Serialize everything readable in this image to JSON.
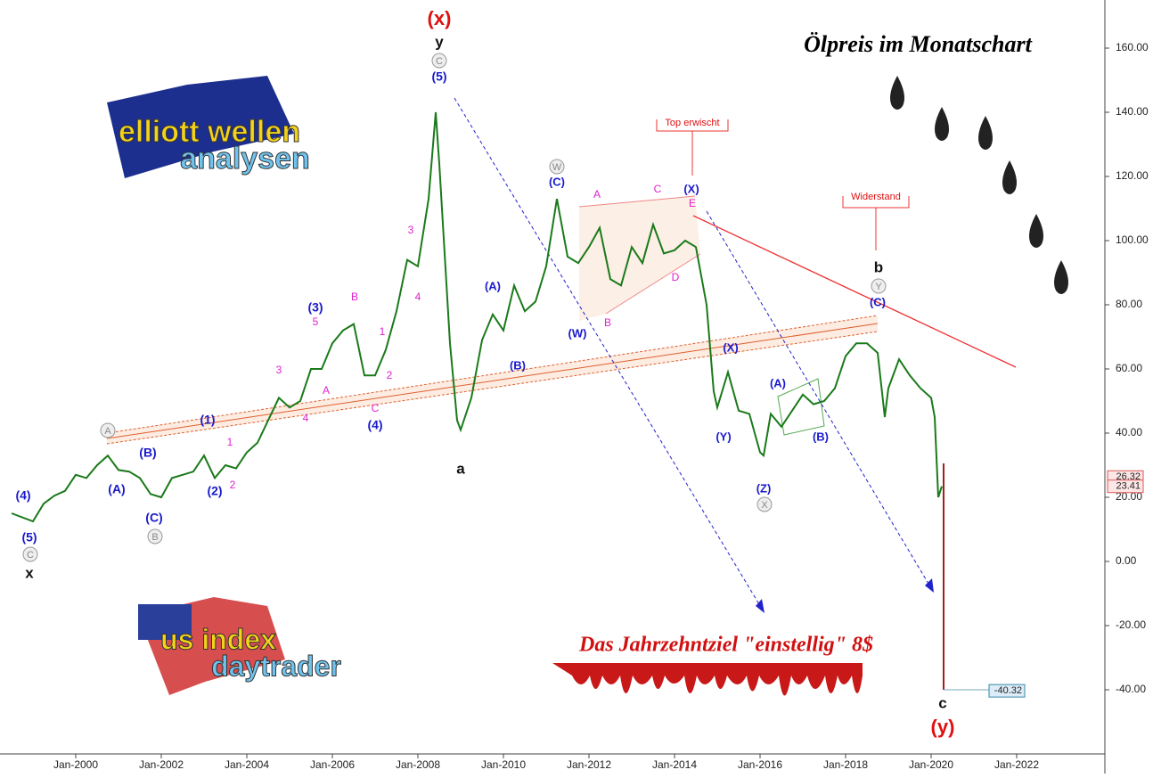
{
  "chart_data": {
    "type": "line",
    "title": "Ölpreis im Monatschart",
    "subtitle": "Das Jahrzehntziel \"einstellig\"   8$",
    "logos": [
      "elliott wellen",
      "analysen",
      "us index",
      "daytrader"
    ],
    "x": [
      "Jul-1998",
      "Jan-1999",
      "Apr-1999",
      "Jul-1999",
      "Oct-1999",
      "Jan-2000",
      "Apr-2000",
      "Jul-2000",
      "Oct-2000",
      "Jan-2001",
      "Apr-2001",
      "Jul-2001",
      "Oct-2001",
      "Jan-2002",
      "Apr-2002",
      "Jul-2002",
      "Oct-2002",
      "Jan-2003",
      "Apr-2003",
      "Jul-2003",
      "Oct-2003",
      "Jan-2004",
      "Apr-2004",
      "Jul-2004",
      "Oct-2004",
      "Jan-2005",
      "Apr-2005",
      "Jul-2005",
      "Oct-2005",
      "Jan-2006",
      "Apr-2006",
      "Jul-2006",
      "Oct-2006",
      "Jan-2007",
      "Apr-2007",
      "Jul-2007",
      "Oct-2007",
      "Jan-2008",
      "Apr-2008",
      "Jun-2008",
      "Jul-2008",
      "Oct-2008",
      "Dec-2008",
      "Jan-2009",
      "Apr-2009",
      "Jul-2009",
      "Oct-2009",
      "Jan-2010",
      "Apr-2010",
      "Jul-2010",
      "Oct-2010",
      "Jan-2011",
      "Apr-2011",
      "Jul-2011",
      "Oct-2011",
      "Jan-2012",
      "Apr-2012",
      "Jul-2012",
      "Oct-2012",
      "Jan-2013",
      "Apr-2013",
      "Jul-2013",
      "Oct-2013",
      "Jan-2014",
      "Apr-2014",
      "Jul-2014",
      "Oct-2014",
      "Dec-2014",
      "Jan-2015",
      "Apr-2015",
      "Jul-2015",
      "Oct-2015",
      "Jan-2016",
      "Feb-2016",
      "Apr-2016",
      "Jul-2016",
      "Oct-2016",
      "Jan-2017",
      "Apr-2017",
      "Jul-2017",
      "Oct-2017",
      "Jan-2018",
      "Apr-2018",
      "Jul-2018",
      "Oct-2018",
      "Dec-2018",
      "Jan-2019",
      "Apr-2019",
      "Jul-2019",
      "Oct-2019",
      "Jan-2020",
      "Feb-2020",
      "Mar-2020",
      "Apr-2020"
    ],
    "series": [
      {
        "name": "Ölpreis",
        "color": "#1a7a1a",
        "values": [
          15,
          12.5,
          18,
          20.5,
          22,
          27,
          26,
          30,
          33,
          28.5,
          28,
          26,
          21,
          20,
          26,
          27,
          28,
          33,
          26,
          30,
          29,
          34,
          37,
          44,
          51,
          48,
          50,
          60,
          60,
          68,
          72,
          74,
          58,
          58,
          66,
          78,
          94,
          92,
          113,
          140,
          124,
          68,
          44,
          41,
          51,
          69,
          77,
          72,
          86,
          78,
          81,
          92,
          113,
          95,
          93,
          98,
          104,
          88,
          86,
          98,
          93,
          105,
          96,
          97,
          100,
          98,
          80,
          53,
          48,
          59,
          47,
          46,
          34,
          33,
          46,
          42,
          47,
          52,
          49,
          50,
          54,
          64,
          68,
          68,
          65,
          45,
          54,
          63,
          58,
          54,
          51,
          45,
          20,
          23.41
        ]
      }
    ],
    "price_labels": [
      {
        "value": 26.32,
        "label": "26.32"
      },
      {
        "value": 23.41,
        "label": "23.41"
      },
      {
        "value": -40.32,
        "label": "-40.32"
      }
    ],
    "ylim": [
      -58,
      175
    ],
    "yticks": [
      {
        "value": -40,
        "label": "-40.00"
      },
      {
        "value": -20,
        "label": "-20.00"
      },
      {
        "value": 0,
        "label": "0.00"
      },
      {
        "value": 20,
        "label": "20.00"
      },
      {
        "value": 40,
        "label": "40.00"
      },
      {
        "value": 60,
        "label": "60.00"
      },
      {
        "value": 80,
        "label": "80.00"
      },
      {
        "value": 100,
        "label": "100.00"
      },
      {
        "value": 120,
        "label": "120.00"
      },
      {
        "value": 140,
        "label": "140.00"
      },
      {
        "value": 160,
        "label": "160.00"
      }
    ],
    "xticks": [
      "Jan-2000",
      "Jan-2002",
      "Jan-2004",
      "Jan-2006",
      "Jan-2008",
      "Jan-2010",
      "Jan-2012",
      "Jan-2014",
      "Jan-2016",
      "Jan-2018",
      "Jan-2020",
      "Jan-2022"
    ],
    "wave_labels": [
      "(x)",
      "y",
      "(5)",
      "a",
      "x",
      "(5)",
      "(4)",
      "(A)",
      "(B)",
      "(C)",
      "(1)",
      "(2)",
      "(3)",
      "(4)",
      "(A)",
      "(B)",
      "(C)",
      "(W)",
      "(X)",
      "(X)",
      "(Y)",
      "(Z)",
      "(A)",
      "(B)",
      "(C)",
      "b",
      "c",
      "(y)"
    ],
    "sub_labels": [
      "A",
      "C",
      "E",
      "B",
      "D",
      "3",
      "4",
      "B",
      "5",
      "3",
      "A",
      "4",
      "1",
      "2",
      "C",
      "1",
      "2"
    ],
    "circled_labels": [
      "C",
      "A",
      "B",
      "C",
      "W",
      "Y",
      "X"
    ],
    "callouts": [
      "Top erwischt",
      "Widerstand"
    ]
  }
}
